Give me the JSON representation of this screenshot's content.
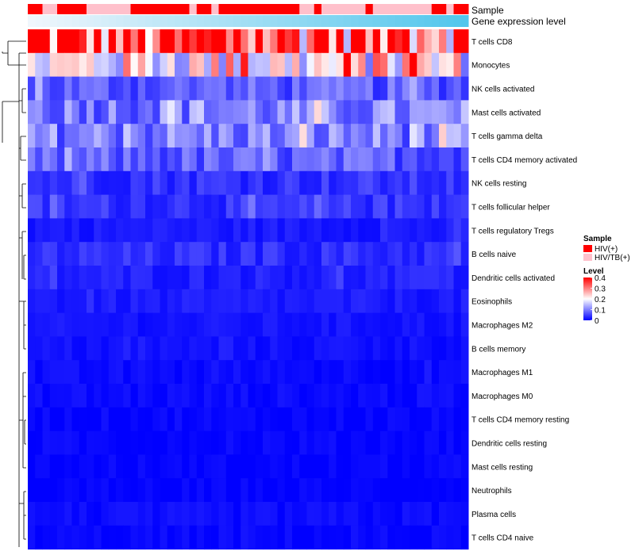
{
  "chart_data": {
    "type": "heatmap",
    "annotation_tracks": [
      "Sample",
      "Gene expression level"
    ],
    "sample_groups": [
      "HIV(+)",
      "HIV(+)",
      "HIV/TB(+)",
      "HIV/TB(+)",
      "HIV(+)",
      "HIV(+)",
      "HIV(+)",
      "HIV(+)",
      "HIV/TB(+)",
      "HIV/TB(+)",
      "HIV/TB(+)",
      "HIV/TB(+)",
      "HIV/TB(+)",
      "HIV/TB(+)",
      "HIV(+)",
      "HIV(+)",
      "HIV(+)",
      "HIV(+)",
      "HIV(+)",
      "HIV(+)",
      "HIV(+)",
      "HIV(+)",
      "HIV/TB(+)",
      "HIV(+)",
      "HIV(+)",
      "HIV/TB(+)",
      "HIV(+)",
      "HIV(+)",
      "HIV(+)",
      "HIV(+)",
      "HIV(+)",
      "HIV(+)",
      "HIV(+)",
      "HIV(+)",
      "HIV(+)",
      "HIV(+)",
      "HIV(+)",
      "HIV/TB(+)",
      "HIV/TB(+)",
      "HIV(+)",
      "HIV/TB(+)",
      "HIV/TB(+)",
      "HIV/TB(+)",
      "HIV/TB(+)",
      "HIV/TB(+)",
      "HIV/TB(+)",
      "HIV(+)",
      "HIV/TB(+)",
      "HIV/TB(+)",
      "HIV/TB(+)",
      "HIV/TB(+)",
      "HIV/TB(+)",
      "HIV/TB(+)",
      "HIV/TB(+)",
      "HIV/TB(+)",
      "HIV(+)",
      "HIV(+)",
      "HIV/TB(+)",
      "HIV(+)",
      "HIV(+)"
    ],
    "expression_gradient": [
      "#f0f6fc",
      "#52c6ec"
    ],
    "cell_types": [
      "T cells CD8",
      "Monocytes",
      "NK cells activated",
      "Mast cells activated",
      "T cells gamma delta",
      "T cells CD4 memory activated",
      "NK cells resting",
      "T cells follicular helper",
      "T cells regulatory  Tregs",
      "B cells naive",
      "Dendritic cells activated",
      "Eosinophils",
      "Macrophages M2",
      "B cells memory",
      "Macrophages M1",
      "Macrophages M0",
      "T cells CD4 memory resting",
      "Dendritic cells resting",
      "Mast cells resting",
      "Neutrophils",
      "Plasma cells",
      "T cells CD4 naive"
    ],
    "row_base_levels": [
      0.34,
      0.2,
      0.07,
      0.1,
      0.1,
      0.07,
      0.04,
      0.04,
      0.02,
      0.035,
      0.025,
      0.02,
      0.015,
      0.012,
      0.008,
      0.008,
      0.004,
      0.004,
      0.002,
      0.001,
      0.008,
      0.004
    ],
    "legend": {
      "sample_title": "Sample",
      "sample_entries": [
        {
          "label": "HIV(+)",
          "color": "#ff0000"
        },
        {
          "label": "HIV/TB(+)",
          "color": "#ffc0cb"
        }
      ],
      "level_title": "Level",
      "level_ticks": [
        "0.4",
        "0.3",
        "0.2",
        "0.1",
        "0"
      ],
      "level_range": [
        0,
        0.4
      ],
      "colors": {
        "low": "#0000ff",
        "mid": "#ffffff",
        "high": "#ff0000"
      }
    }
  }
}
